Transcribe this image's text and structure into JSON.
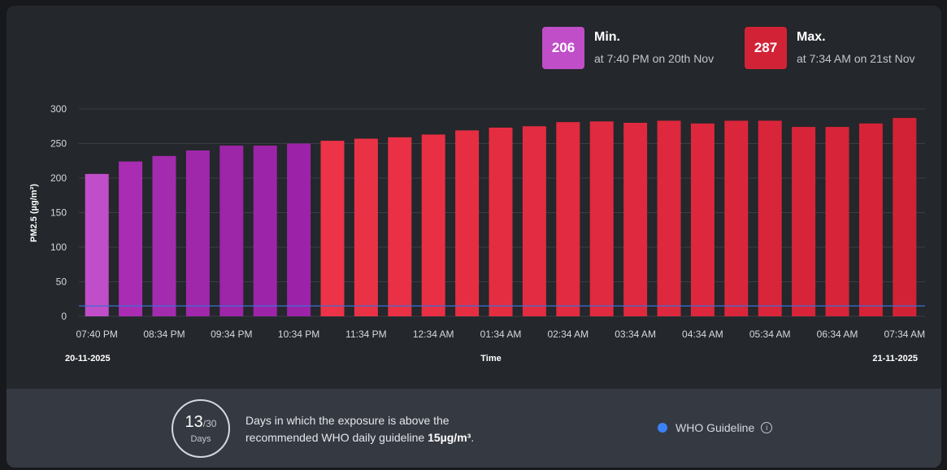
{
  "min": {
    "value": "206",
    "label": "Min.",
    "sub": "at 7:40 PM on 20th Nov",
    "color": "#c04ec8"
  },
  "max": {
    "value": "287",
    "label": "Max.",
    "sub": "at 7:34 AM on 21st Nov",
    "color": "#d22336"
  },
  "chart_data": {
    "type": "bar",
    "ylabel": "PM2.5 (µg/m³)",
    "xlabel": "Time",
    "ylim": [
      0,
      300
    ],
    "yticks": [
      0,
      50,
      100,
      150,
      200,
      250,
      300
    ],
    "start_date": "20-11-2025",
    "end_date": "21-11-2025",
    "tick_labels": [
      "07:40 PM",
      "08:34 PM",
      "09:34 PM",
      "10:34 PM",
      "11:34 PM",
      "12:34 AM",
      "01:34 AM",
      "02:34 AM",
      "03:34 AM",
      "04:34 AM",
      "05:34 AM",
      "06:34 AM",
      "07:34 AM"
    ],
    "values": [
      206,
      224,
      232,
      240,
      247,
      247,
      250,
      254,
      257,
      259,
      263,
      269,
      273,
      275,
      281,
      282,
      280,
      283,
      279,
      283,
      283,
      274,
      274,
      279,
      287
    ],
    "colors": [
      "#c04ec8",
      "#a92cb3",
      "#a32bae",
      "#9f27aa",
      "#9d25a8",
      "#9c24a8",
      "#9c23a8",
      "#ec3347",
      "#ea3246",
      "#e93045",
      "#e82f44",
      "#e62e43",
      "#e52d42",
      "#e32c41",
      "#e22b40",
      "#e02a3f",
      "#df293e",
      "#dd283d",
      "#dc273c",
      "#da263b",
      "#d9253a",
      "#d82439",
      "#d72438",
      "#d62337",
      "#d22336"
    ],
    "guideline": {
      "value": 15,
      "color": "#3b6fd6"
    }
  },
  "footer": {
    "days": "13",
    "total": "/30",
    "days_label": "Days",
    "text1": "Days in which the exposure is above the recommended WHO daily guideline ",
    "text_bold": "15µg/m³",
    "text_end": ".",
    "legend": "WHO Guideline",
    "info_glyph": "i"
  }
}
